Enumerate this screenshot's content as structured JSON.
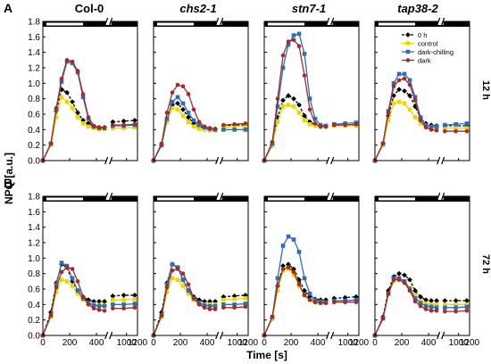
{
  "figure": {
    "panel_letters": [
      "A",
      "B"
    ],
    "column_titles": [
      "Col-0",
      "chs2-1",
      "stn7-1",
      "tap38-2"
    ],
    "italic_titles": [
      false,
      true,
      true,
      true
    ],
    "row_labels": [
      "12 h",
      "72 h"
    ],
    "ylabel": "NPQ [a.u.]",
    "xlabel": "Time [s]"
  },
  "chart_data": {
    "type": "line",
    "panels": "rows x columns small multiples",
    "x_broken_axis": {
      "segment1": [
        0,
        480
      ],
      "segment2": [
        700,
        1200
      ]
    },
    "xticks": [
      "0",
      "200",
      "400",
      "1000",
      "1200"
    ],
    "ylim": [
      0.0,
      1.8
    ],
    "yticks": [
      "0.0",
      "0.2",
      "0.4",
      "0.6",
      "0.8",
      "1.0",
      "1.2",
      "1.4",
      "1.6",
      "1.8"
    ],
    "x": [
      0,
      60,
      100,
      140,
      180,
      220,
      260,
      300,
      340,
      380,
      420,
      460,
      750,
      950,
      1150
    ],
    "light_bar": {
      "white_until": 300
    },
    "series_style": [
      {
        "name": "0 h",
        "color": "#000000",
        "marker": "diamond",
        "dashed": true
      },
      {
        "name": "control",
        "color": "#e8d800",
        "marker": "square",
        "dashed": false
      },
      {
        "name": "dark-chilling",
        "color": "#2f6db8",
        "marker": "square",
        "dashed": false
      },
      {
        "name": "dark",
        "color": "#a32b2b",
        "marker": "circle",
        "dashed": false
      }
    ],
    "rows": [
      [
        {
          "title": "Col-0",
          "series": [
            [
              0,
              0.22,
              0.64,
              0.92,
              0.88,
              0.76,
              0.62,
              0.52,
              0.48,
              0.44,
              0.43,
              0.43,
              0.5,
              0.51,
              0.52
            ],
            [
              0,
              0.2,
              0.56,
              0.82,
              0.76,
              0.68,
              0.56,
              0.48,
              0.44,
              0.42,
              0.41,
              0.41,
              0.42,
              0.42,
              0.43
            ],
            [
              0,
              0.22,
              0.66,
              1.02,
              1.28,
              1.26,
              1.14,
              0.82,
              0.54,
              0.44,
              0.42,
              0.42,
              0.45,
              0.45,
              0.46
            ],
            [
              0,
              0.22,
              0.68,
              1.06,
              1.3,
              1.28,
              1.16,
              0.86,
              0.56,
              0.45,
              0.43,
              0.43,
              0.46,
              0.46,
              0.47
            ]
          ]
        },
        {
          "title": "chs2-1",
          "series": [
            [
              0,
              0.2,
              0.52,
              0.72,
              0.74,
              0.66,
              0.56,
              0.48,
              0.44,
              0.42,
              0.41,
              0.41,
              0.45,
              0.46,
              0.46
            ],
            [
              0,
              0.2,
              0.5,
              0.68,
              0.66,
              0.58,
              0.5,
              0.44,
              0.41,
              0.4,
              0.39,
              0.39,
              0.43,
              0.44,
              0.44
            ],
            [
              0,
              0.2,
              0.54,
              0.76,
              0.82,
              0.74,
              0.62,
              0.52,
              0.46,
              0.43,
              0.41,
              0.4,
              0.4,
              0.4,
              0.4
            ],
            [
              0,
              0.22,
              0.62,
              0.88,
              0.98,
              0.96,
              0.86,
              0.66,
              0.5,
              0.44,
              0.42,
              0.41,
              0.46,
              0.47,
              0.48
            ]
          ]
        },
        {
          "title": "stn7-1",
          "series": [
            [
              0,
              0.2,
              0.56,
              0.78,
              0.84,
              0.8,
              0.72,
              0.58,
              0.5,
              0.46,
              0.44,
              0.44,
              0.46,
              0.46,
              0.46
            ],
            [
              0,
              0.2,
              0.5,
              0.7,
              0.72,
              0.7,
              0.62,
              0.52,
              0.47,
              0.45,
              0.44,
              0.44,
              0.45,
              0.45,
              0.45
            ],
            [
              0,
              0.22,
              0.7,
              1.2,
              1.5,
              1.62,
              1.64,
              1.38,
              0.8,
              0.54,
              0.46,
              0.45,
              0.47,
              0.48,
              0.49
            ],
            [
              0,
              0.24,
              0.8,
              1.36,
              1.54,
              1.56,
              1.48,
              1.1,
              0.66,
              0.48,
              0.44,
              0.44,
              0.46,
              0.46,
              0.47
            ]
          ]
        },
        {
          "title": "tap38-2",
          "series": [
            [
              0,
              0.22,
              0.58,
              0.84,
              0.92,
              0.9,
              0.84,
              0.7,
              0.55,
              0.48,
              0.46,
              0.45,
              0.45,
              0.45,
              0.45
            ],
            [
              0,
              0.2,
              0.52,
              0.74,
              0.76,
              0.74,
              0.66,
              0.56,
              0.48,
              0.44,
              0.42,
              0.42,
              0.42,
              0.42,
              0.42
            ],
            [
              0,
              0.22,
              0.64,
              1.0,
              1.12,
              1.12,
              1.04,
              0.82,
              0.56,
              0.46,
              0.44,
              0.44,
              0.46,
              0.47,
              0.48
            ],
            [
              0,
              0.22,
              0.62,
              0.96,
              1.04,
              1.06,
              0.98,
              0.78,
              0.52,
              0.43,
              0.4,
              0.39,
              0.38,
              0.38,
              0.38
            ]
          ]
        }
      ],
      [
        {
          "title": "Col-0",
          "series": [
            [
              0,
              0.3,
              0.68,
              0.92,
              0.88,
              0.7,
              0.58,
              0.5,
              0.46,
              0.44,
              0.44,
              0.44,
              0.51,
              0.52,
              0.52
            ],
            [
              0,
              0.24,
              0.56,
              0.72,
              0.7,
              0.64,
              0.54,
              0.46,
              0.42,
              0.4,
              0.39,
              0.39,
              0.46,
              0.46,
              0.47
            ],
            [
              0,
              0.26,
              0.66,
              0.94,
              0.9,
              0.74,
              0.58,
              0.48,
              0.42,
              0.39,
              0.38,
              0.38,
              0.4,
              0.4,
              0.41
            ],
            [
              0,
              0.26,
              0.62,
              0.82,
              0.88,
              0.86,
              0.7,
              0.5,
              0.4,
              0.35,
              0.33,
              0.32,
              0.35,
              0.35,
              0.36
            ]
          ]
        },
        {
          "title": "chs2-1",
          "series": [
            [
              0,
              0.3,
              0.68,
              0.92,
              0.88,
              0.72,
              0.58,
              0.5,
              0.46,
              0.44,
              0.44,
              0.44,
              0.5,
              0.51,
              0.52
            ],
            [
              0,
              0.24,
              0.56,
              0.74,
              0.72,
              0.64,
              0.54,
              0.46,
              0.42,
              0.4,
              0.4,
              0.4,
              0.46,
              0.47,
              0.48
            ],
            [
              0,
              0.26,
              0.66,
              0.92,
              0.88,
              0.72,
              0.58,
              0.48,
              0.42,
              0.39,
              0.38,
              0.38,
              0.4,
              0.4,
              0.41
            ],
            [
              0,
              0.26,
              0.62,
              0.84,
              0.86,
              0.8,
              0.66,
              0.48,
              0.4,
              0.36,
              0.34,
              0.34,
              0.36,
              0.36,
              0.37
            ]
          ]
        },
        {
          "title": "stn7-1",
          "series": [
            [
              0,
              0.22,
              0.64,
              0.9,
              0.92,
              0.86,
              0.72,
              0.58,
              0.5,
              0.47,
              0.46,
              0.46,
              0.48,
              0.49,
              0.5
            ],
            [
              0,
              0.22,
              0.58,
              0.84,
              0.86,
              0.78,
              0.64,
              0.52,
              0.46,
              0.43,
              0.42,
              0.42,
              0.44,
              0.44,
              0.45
            ],
            [
              0,
              0.24,
              0.74,
              1.16,
              1.28,
              1.24,
              1.08,
              0.74,
              0.54,
              0.46,
              0.44,
              0.43,
              0.45,
              0.45,
              0.46
            ],
            [
              0,
              0.24,
              0.64,
              0.86,
              0.88,
              0.82,
              0.66,
              0.52,
              0.46,
              0.43,
              0.42,
              0.42,
              0.43,
              0.43,
              0.43
            ]
          ]
        },
        {
          "title": "tap38-2",
          "series": [
            [
              0,
              0.24,
              0.58,
              0.76,
              0.8,
              0.78,
              0.72,
              0.58,
              0.5,
              0.46,
              0.45,
              0.45,
              0.45,
              0.45,
              0.45
            ],
            [
              0,
              0.22,
              0.54,
              0.7,
              0.74,
              0.7,
              0.62,
              0.52,
              0.44,
              0.41,
              0.4,
              0.4,
              0.4,
              0.4,
              0.4
            ],
            [
              0,
              0.22,
              0.54,
              0.74,
              0.74,
              0.7,
              0.6,
              0.48,
              0.42,
              0.38,
              0.37,
              0.36,
              0.36,
              0.36,
              0.37
            ],
            [
              0,
              0.22,
              0.54,
              0.72,
              0.72,
              0.68,
              0.58,
              0.44,
              0.38,
              0.34,
              0.32,
              0.32,
              0.31,
              0.31,
              0.32
            ]
          ]
        }
      ]
    ]
  }
}
